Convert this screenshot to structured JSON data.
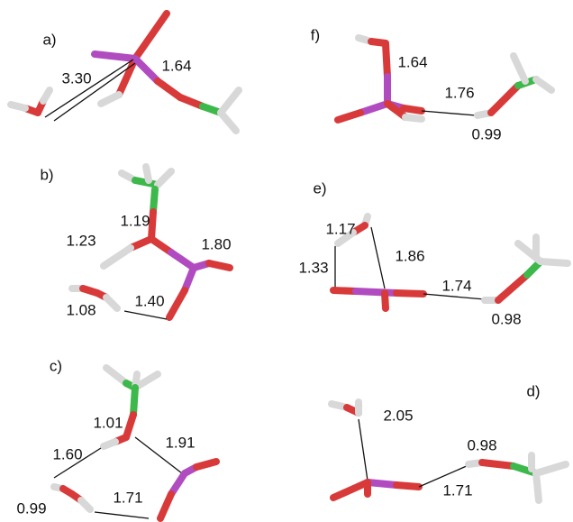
{
  "panels": [
    {
      "label": "a)",
      "distances": [
        "3.30",
        "1.64"
      ]
    },
    {
      "label": "f)",
      "distances": [
        "1.64",
        "1.76",
        "0.99"
      ]
    },
    {
      "label": "b)",
      "distances": [
        "1.19",
        "1.80",
        "1.23",
        "1.40",
        "1.08"
      ]
    },
    {
      "label": "e)",
      "distances": [
        "1.17",
        "1.86",
        "1.33",
        "1.74",
        "0.98"
      ]
    },
    {
      "label": "c)",
      "distances": [
        "1.01",
        "1.91",
        "1.60",
        "1.71",
        "0.99"
      ]
    },
    {
      "label": "d)",
      "distances": [
        "2.05",
        "0.98",
        "1.71"
      ]
    }
  ]
}
